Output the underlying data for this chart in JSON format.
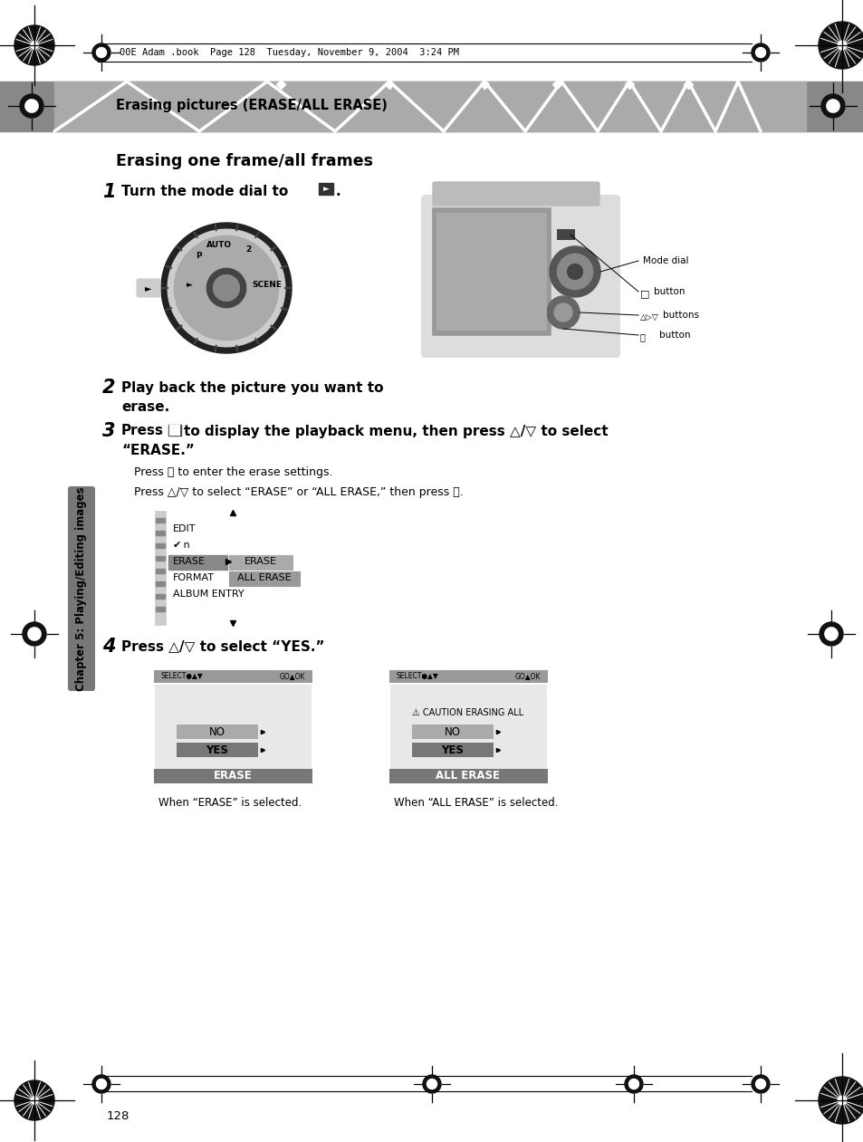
{
  "page_num": "128",
  "header_text": "00E Adam .book  Page 128  Tuesday, November 9, 2004  3:24 PM",
  "section_title": "Erasing pictures (ERASE/ALL ERASE)",
  "main_title": "Erasing one frame/all frames",
  "step1_bold": "Turn the mode dial to ",
  "step2_bold": "Play back the picture you want to",
  "step2_bold2": "erase.",
  "step3_bold1": "Press ■ to display the playback menu, then press △/▽ to select",
  "step3_bold2": "“ERASE.”",
  "step3_sub1": "Press ⓞ to enter the erase settings.",
  "step3_sub2": "Press △/▽ to select “ERASE” or “ALL ERASE,” then press ⓞ.",
  "step4_bold": "Press △/▽ to select “YES.”",
  "caption1": "When “ERASE” is selected.",
  "caption2": "When “ALL ERASE” is selected.",
  "sidebar_text": "Chapter 5: Playing/Editing images",
  "label_mode_dial": "Mode dial",
  "label_button1": "■ button",
  "label_buttons2": "△▷▽◁ buttons",
  "label_button3": "ⓞ button",
  "bg_color": "#ffffff",
  "banner_dark": "#888888",
  "banner_light": "#bbbbbb",
  "sidebar_color": "#888888",
  "tab_color": "#666666"
}
